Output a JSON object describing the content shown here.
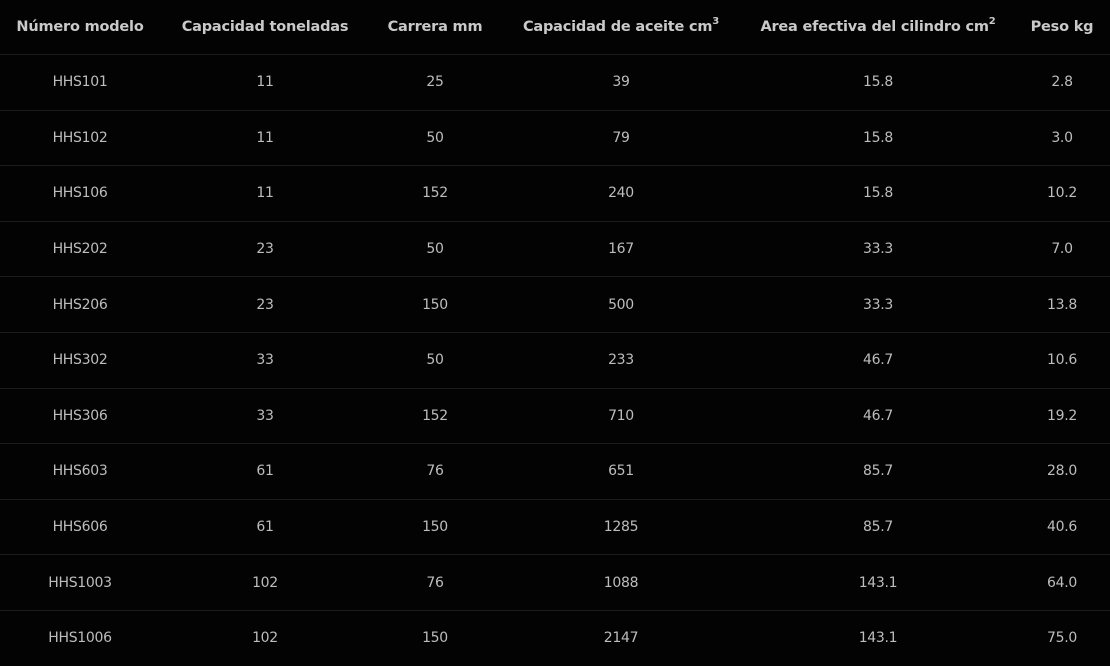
{
  "table": {
    "headers": [
      {
        "label": "Número modelo",
        "sup": ""
      },
      {
        "label": "Capacidad toneladas",
        "sup": ""
      },
      {
        "label": "Carrera mm",
        "sup": ""
      },
      {
        "label": "Capacidad de aceite cm",
        "sup": "3"
      },
      {
        "label": "Area efectiva del cilindro cm",
        "sup": "2"
      },
      {
        "label": "Peso kg",
        "sup": ""
      }
    ],
    "rows": [
      [
        "HHS101",
        "11",
        "25",
        "39",
        "15.8",
        "2.8"
      ],
      [
        "HHS102",
        "11",
        "50",
        "79",
        "15.8",
        "3.0"
      ],
      [
        "HHS106",
        "11",
        "152",
        "240",
        "15.8",
        "10.2"
      ],
      [
        "HHS202",
        "23",
        "50",
        "167",
        "33.3",
        "7.0"
      ],
      [
        "HHS206",
        "23",
        "150",
        "500",
        "33.3",
        "13.8"
      ],
      [
        "HHS302",
        "33",
        "50",
        "233",
        "46.7",
        "10.6"
      ],
      [
        "HHS306",
        "33",
        "152",
        "710",
        "46.7",
        "19.2"
      ],
      [
        "HHS603",
        "61",
        "76",
        "651",
        "85.7",
        "28.0"
      ],
      [
        "HHS606",
        "61",
        "150",
        "1285",
        "85.7",
        "40.6"
      ],
      [
        "HHS1003",
        "102",
        "76",
        "1088",
        "143.1",
        "64.0"
      ],
      [
        "HHS1006",
        "102",
        "150",
        "2147",
        "143.1",
        "75.0"
      ]
    ]
  }
}
